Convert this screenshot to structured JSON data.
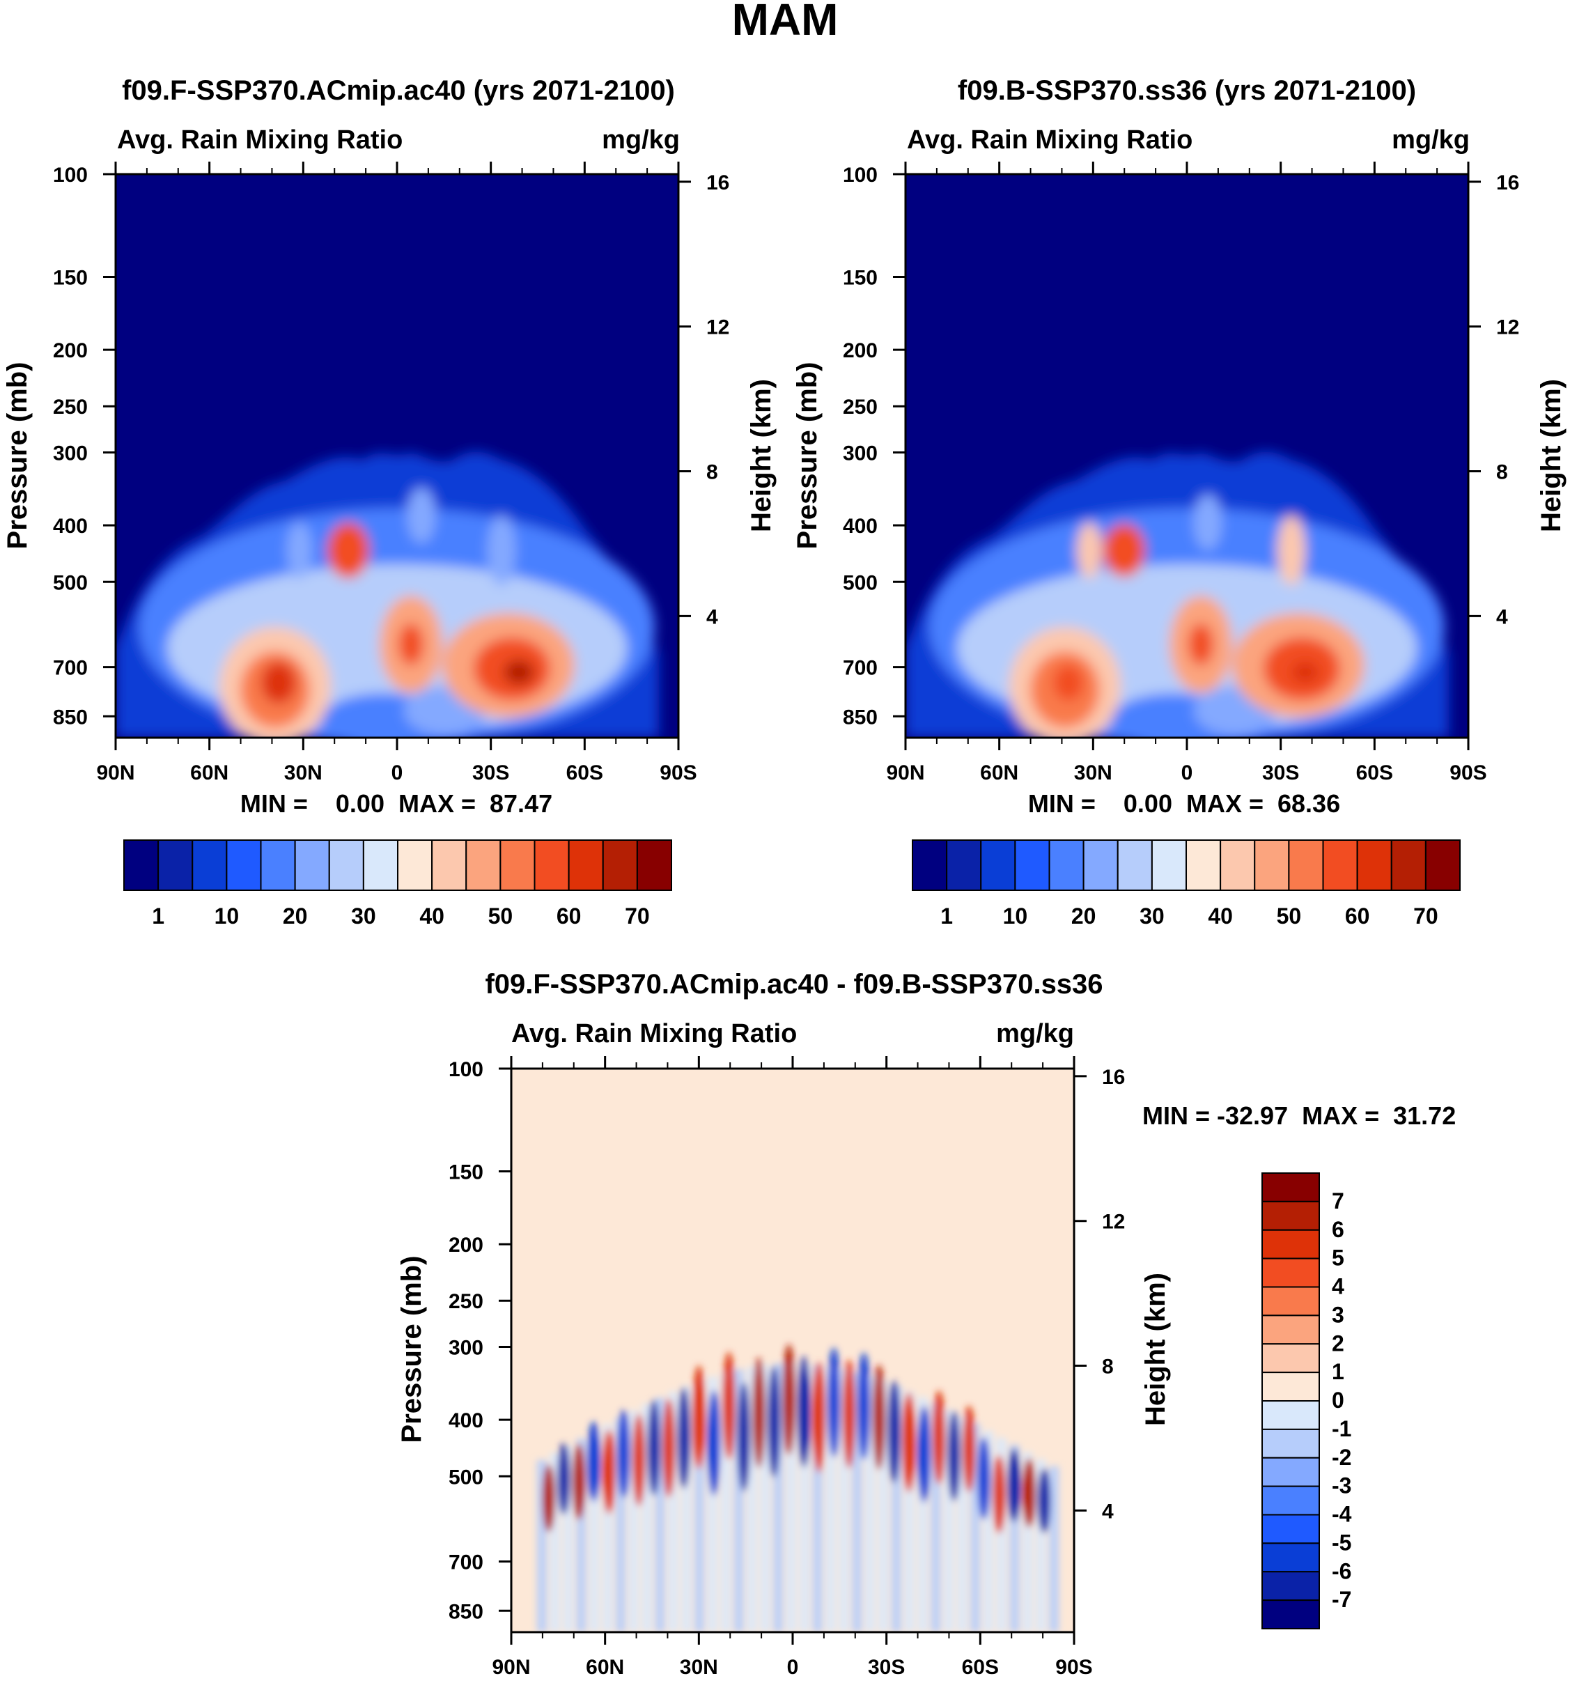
{
  "figure": {
    "title": "MAM",
    "colors": {
      "abs_scale": [
        "#000080",
        "#0a22a8",
        "#0a3ed6",
        "#1f5aff",
        "#4a80ff",
        "#84a9ff",
        "#b6cdfb",
        "#d9e8fb",
        "#fde8d7",
        "#fcc8ae",
        "#fba47e",
        "#f97a4c",
        "#f24d22",
        "#de3208",
        "#b41f04",
        "#880000"
      ],
      "diff_scale": [
        "#000080",
        "#0a22a8",
        "#0a3ed6",
        "#1f5aff",
        "#4a80ff",
        "#84a9ff",
        "#b6cdfb",
        "#d9e8fb",
        "#fde8d7",
        "#fcc8ae",
        "#fba47e",
        "#f97a4c",
        "#f24d22",
        "#de3208",
        "#b41f04",
        "#880000"
      ]
    }
  },
  "chart_data": [
    {
      "id": "panel1",
      "type": "heatmap",
      "title": "f09.F-SSP370.ACmip.ac40 (yrs 2071-2100)",
      "left_title": "Avg. Rain Mixing Ratio",
      "right_title": "mg/kg",
      "ylabel": "Pressure (mb)",
      "ylabel_right": "Height (km)",
      "x_ticks": [
        "90N",
        "60N",
        "30N",
        "0",
        "30S",
        "60S",
        "90S"
      ],
      "y_ticks": [
        "100",
        "150",
        "200",
        "250",
        "300",
        "400",
        "500",
        "700",
        "850"
      ],
      "y_ticks_right": [
        "16",
        "12",
        "8",
        "4"
      ],
      "stats": "MIN =    0.00  MAX =  87.47",
      "min": 0.0,
      "max": 87.47,
      "levels": [
        1,
        5,
        10,
        15,
        20,
        25,
        30,
        35,
        40,
        45,
        50,
        55,
        60,
        65,
        70
      ],
      "colorbar_labels": [
        "1",
        "10",
        "20",
        "30",
        "40",
        "50",
        "60",
        "70"
      ],
      "ylim_mb": [
        100,
        925
      ],
      "xlim_lat": [
        90,
        -90
      ]
    },
    {
      "id": "panel2",
      "type": "heatmap",
      "title": "f09.B-SSP370.ss36 (yrs 2071-2100)",
      "left_title": "Avg. Rain Mixing Ratio",
      "right_title": "mg/kg",
      "ylabel": "Pressure (mb)",
      "ylabel_right": "Height (km)",
      "x_ticks": [
        "90N",
        "60N",
        "30N",
        "0",
        "30S",
        "60S",
        "90S"
      ],
      "y_ticks": [
        "100",
        "150",
        "200",
        "250",
        "300",
        "400",
        "500",
        "700",
        "850"
      ],
      "y_ticks_right": [
        "16",
        "12",
        "8",
        "4"
      ],
      "stats": "MIN =    0.00  MAX =  68.36",
      "min": 0.0,
      "max": 68.36,
      "levels": [
        1,
        5,
        10,
        15,
        20,
        25,
        30,
        35,
        40,
        45,
        50,
        55,
        60,
        65,
        70
      ],
      "colorbar_labels": [
        "1",
        "10",
        "20",
        "30",
        "40",
        "50",
        "60",
        "70"
      ],
      "ylim_mb": [
        100,
        925
      ],
      "xlim_lat": [
        90,
        -90
      ]
    },
    {
      "id": "panel3",
      "type": "heatmap",
      "title": "f09.F-SSP370.ACmip.ac40 - f09.B-SSP370.ss36",
      "left_title": "Avg. Rain Mixing Ratio",
      "right_title": "mg/kg",
      "ylabel": "Pressure (mb)",
      "ylabel_right": "Height (km)",
      "x_ticks": [
        "90N",
        "60N",
        "30N",
        "0",
        "30S",
        "60S",
        "90S"
      ],
      "y_ticks": [
        "100",
        "150",
        "200",
        "250",
        "300",
        "400",
        "500",
        "700",
        "850"
      ],
      "y_ticks_right": [
        "16",
        "12",
        "8",
        "4"
      ],
      "stats": "MIN = -32.97  MAX =  31.72",
      "min": -32.97,
      "max": 31.72,
      "levels": [
        -7,
        -6,
        -5,
        -4,
        -3,
        -2,
        -1,
        0,
        1,
        2,
        3,
        4,
        5,
        6,
        7
      ],
      "colorbar_labels": [
        "7",
        "6",
        "5",
        "4",
        "3",
        "2",
        "1",
        "0",
        "-1",
        "-2",
        "-3",
        "-4",
        "-5",
        "-6",
        "-7"
      ],
      "ylim_mb": [
        100,
        925
      ],
      "xlim_lat": [
        90,
        -90
      ]
    }
  ]
}
